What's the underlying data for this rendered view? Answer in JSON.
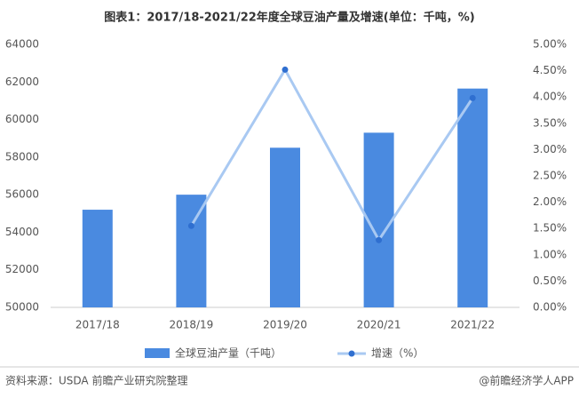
{
  "chart_data": {
    "type": "bar_line",
    "title": "图表1：2017/18-2021/22年度全球豆油产量及增速(单位：千吨，%)",
    "categories": [
      "2017/18",
      "2018/19",
      "2019/20",
      "2020/21",
      "2021/22"
    ],
    "series": [
      {
        "name": "全球豆油产量（千吨）",
        "type": "bar",
        "color": "#4a8ae0",
        "values": [
          55200,
          56000,
          58500,
          59300,
          61650
        ]
      },
      {
        "name": "增速（%）",
        "type": "line",
        "axis": "y2",
        "color": "#a9c9f2",
        "marker_color": "#2f6fd0",
        "values": [
          null,
          1.55,
          4.52,
          1.28,
          3.98
        ]
      }
    ],
    "ylim": [
      50000,
      64000
    ],
    "yticks": [
      50000,
      52000,
      54000,
      56000,
      58000,
      60000,
      62000,
      64000
    ],
    "y2lim": [
      0,
      5
    ],
    "y2ticks": [
      {
        "value": 0,
        "label": "0.00%"
      },
      {
        "value": 0.5,
        "label": "0.50%"
      },
      {
        "value": 1,
        "label": "1.00%"
      },
      {
        "value": 1.5,
        "label": "1.50%"
      },
      {
        "value": 2,
        "label": "2.00%"
      },
      {
        "value": 2.5,
        "label": "2.50%"
      },
      {
        "value": 3,
        "label": "3.00%"
      },
      {
        "value": 3.5,
        "label": "3.50%"
      },
      {
        "value": 4,
        "label": "4.00%"
      },
      {
        "value": 4.5,
        "label": "4.50%"
      },
      {
        "value": 5,
        "label": "5.00%"
      }
    ],
    "source": "资料来源：USDA 前瞻产业研究院整理",
    "brand": "@前瞻经济学人APP"
  }
}
